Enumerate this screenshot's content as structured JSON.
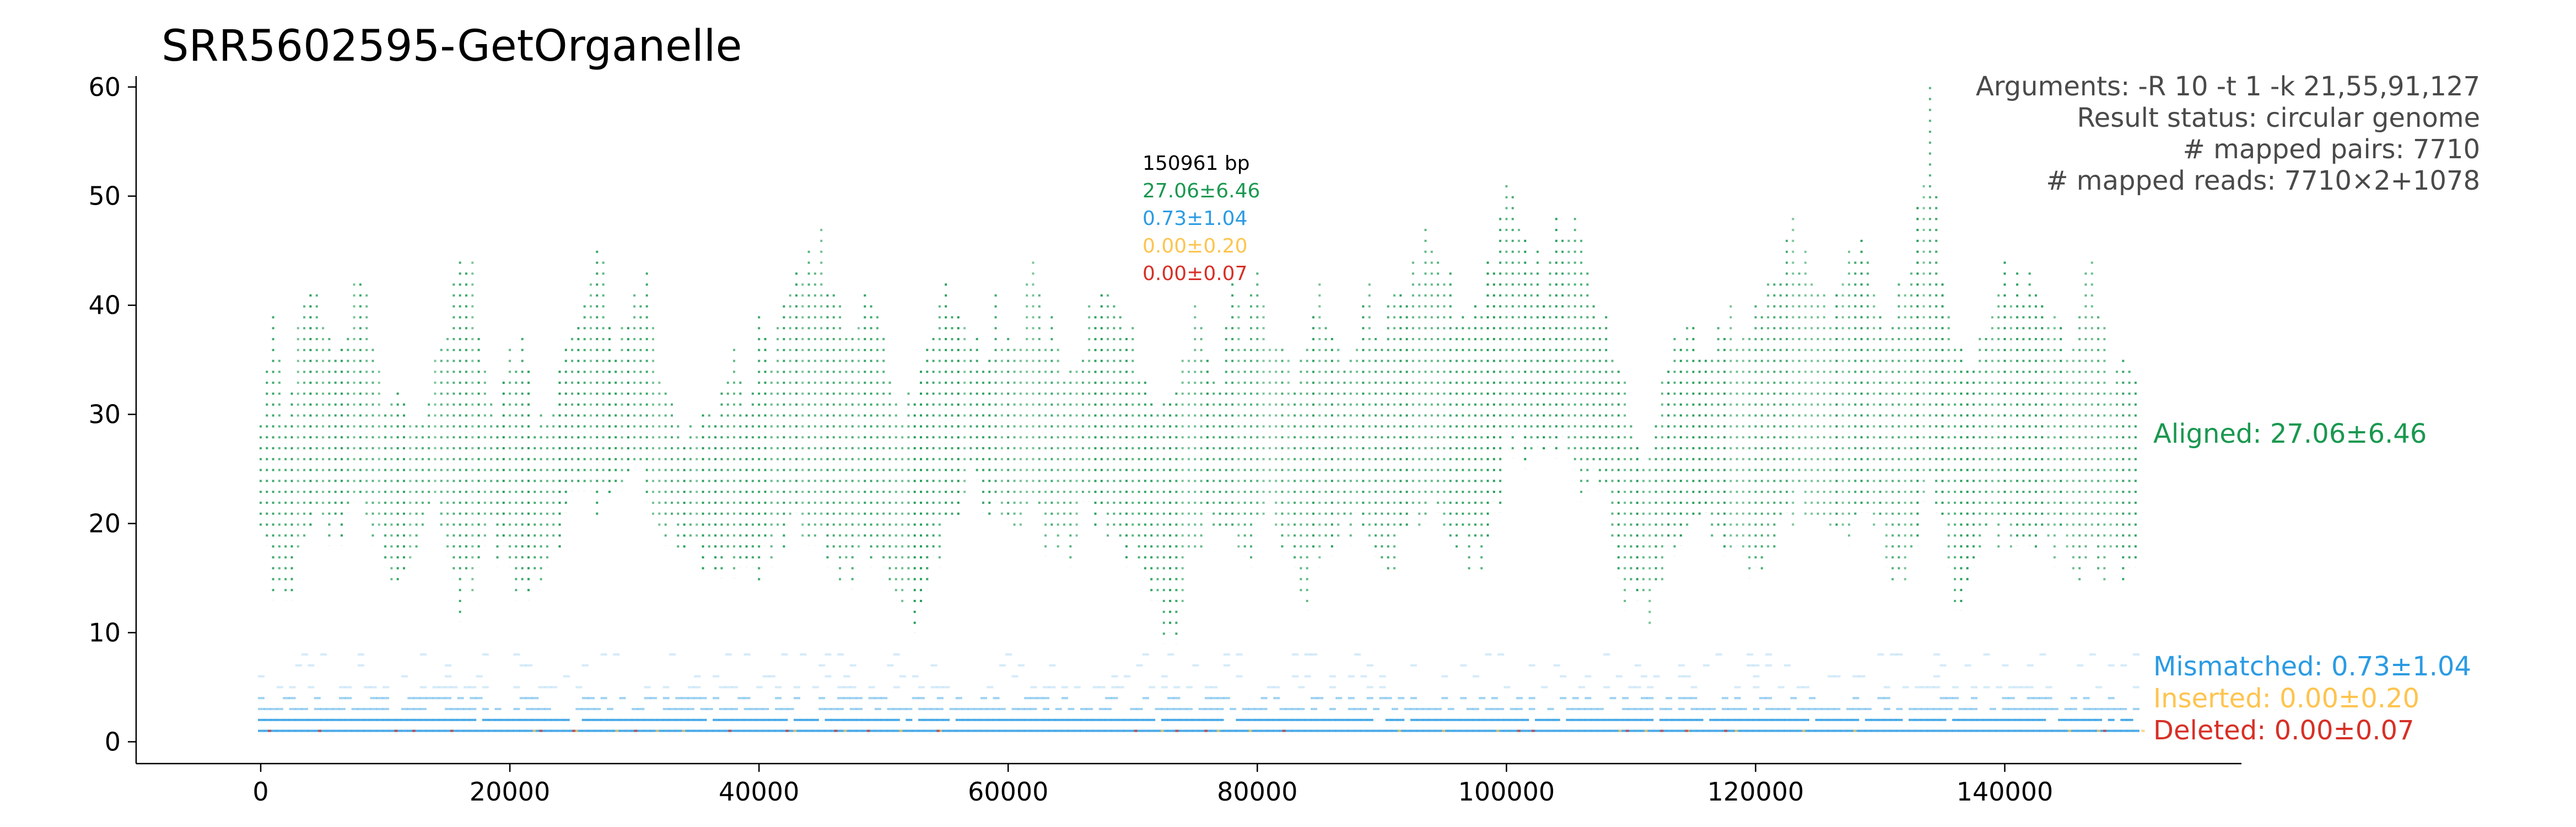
{
  "chart_data": {
    "type": "scatter",
    "title": "SRR5602595-GetOrganelle",
    "xlabel": "",
    "ylabel": "",
    "xlim": [
      -10000,
      159000
    ],
    "ylim": [
      -2,
      61
    ],
    "x_ticks": [
      0,
      20000,
      40000,
      60000,
      80000,
      100000,
      120000,
      140000
    ],
    "x_tick_labels": [
      "0",
      "20000",
      "40000",
      "60000",
      "80000",
      "100000",
      "120000",
      "140000"
    ],
    "y_ticks": [
      0,
      10,
      20,
      30,
      40,
      50,
      60
    ],
    "y_tick_labels": [
      "0",
      "10",
      "20",
      "30",
      "40",
      "50",
      "60"
    ],
    "grid": false,
    "genome_length_bp": 150961,
    "genome_length_label": "150961 bp",
    "info_lines": [
      "Arguments: -R 10 -t 1 -k 21,55,91,127",
      "Result status: circular genome",
      "# mapped pairs: 7710",
      "# mapped reads: 7710×2+1078"
    ],
    "series": [
      {
        "name": "Aligned",
        "label": "Aligned: 27.06±6.46",
        "stat": "27.06±6.46",
        "mean": 27.06,
        "sd": 6.46,
        "color": "#1a9850",
        "profile": {
          "x": [
            0,
            1000,
            2000,
            3000,
            4000,
            5000,
            6000,
            7000,
            8000,
            9000,
            10000,
            11000,
            12000,
            13000,
            14000,
            15000,
            16000,
            17000,
            18000,
            19000,
            20000,
            21000,
            22000,
            23000,
            24000,
            25000,
            26000,
            27000,
            28000,
            29000,
            30000,
            31000,
            32000,
            33000,
            34000,
            35000,
            36000,
            37000,
            38000,
            39000,
            40000,
            41000,
            42000,
            43000,
            44000,
            45000,
            46000,
            47000,
            48000,
            49000,
            50000,
            51000,
            52000,
            53000,
            54000,
            55000,
            56000,
            57000,
            58000,
            59000,
            60000,
            61000,
            62000,
            63000,
            64000,
            65000,
            66000,
            67000,
            68000,
            69000,
            70000,
            71000,
            72000,
            73000,
            74000,
            75000,
            76000,
            77000,
            78000,
            79000,
            80000,
            81000,
            82000,
            83000,
            84000,
            85000,
            86000,
            87000,
            88000,
            89000,
            90000,
            91000,
            92000,
            93000,
            94000,
            95000,
            96000,
            97000,
            98000,
            99000,
            100000,
            101000,
            102000,
            103000,
            104000,
            105000,
            106000,
            107000,
            108000,
            109000,
            110000,
            111000,
            112000,
            113000,
            114000,
            115000,
            116000,
            117000,
            118000,
            119000,
            120000,
            121000,
            122000,
            123000,
            124000,
            125000,
            126000,
            127000,
            128000,
            129000,
            130000,
            131000,
            132000,
            133000,
            134000,
            135000,
            136000,
            137000,
            138000,
            139000,
            140000,
            141000,
            142000,
            143000,
            144000,
            145000,
            146000,
            147000,
            148000,
            149000,
            150000
          ],
          "low": [
            18,
            14,
            12,
            16,
            20,
            19,
            18,
            20,
            22,
            18,
            17,
            14,
            16,
            18,
            20,
            16,
            12,
            15,
            19,
            18,
            16,
            13,
            14,
            17,
            19,
            22,
            24,
            22,
            23,
            24,
            26,
            21,
            18,
            19,
            17,
            16,
            15,
            16,
            14,
            16,
            15,
            17,
            18,
            20,
            19,
            18,
            17,
            15,
            16,
            17,
            14,
            12,
            13,
            11,
            15,
            19,
            22,
            23,
            21,
            22,
            20,
            21,
            22,
            19,
            18,
            17,
            20,
            21,
            19,
            18,
            17,
            16,
            11,
            8,
            13,
            18,
            19,
            20,
            18,
            17,
            19,
            20,
            18,
            15,
            14,
            16,
            18,
            19,
            20,
            17,
            15,
            16,
            18,
            20,
            21,
            19,
            18,
            17,
            16,
            20,
            26,
            27,
            25,
            26,
            27,
            25,
            24,
            23,
            21,
            16,
            12,
            11,
            13,
            17,
            19,
            18,
            20,
            19,
            18,
            17,
            16,
            17,
            18,
            21,
            22,
            20,
            19,
            18,
            20,
            21,
            20,
            16,
            13,
            20,
            25,
            19,
            13,
            15,
            18,
            19,
            18,
            17,
            18,
            19,
            18,
            17,
            16,
            17,
            16,
            15,
            14
          ],
          "high": [
            30,
            37,
            31,
            36,
            42,
            40,
            35,
            38,
            44,
            36,
            32,
            33,
            28,
            30,
            34,
            36,
            44,
            42,
            32,
            30,
            34,
            36,
            30,
            28,
            34,
            38,
            42,
            47,
            38,
            36,
            40,
            43,
            35,
            30,
            28,
            29,
            32,
            30,
            34,
            32,
            37,
            36,
            38,
            41,
            46,
            45,
            40,
            36,
            38,
            42,
            36,
            30,
            32,
            34,
            36,
            42,
            41,
            36,
            35,
            39,
            37,
            38,
            42,
            38,
            36,
            35,
            37,
            40,
            43,
            38,
            36,
            33,
            30,
            29,
            35,
            38,
            36,
            33,
            40,
            37,
            41,
            38,
            36,
            34,
            38,
            40,
            36,
            34,
            37,
            40,
            38,
            39,
            42,
            44,
            46,
            42,
            40,
            39,
            38,
            45,
            50,
            46,
            44,
            42,
            47,
            48,
            46,
            42,
            38,
            34,
            28,
            26,
            30,
            34,
            38,
            36,
            34,
            40,
            38,
            36,
            39,
            42,
            44,
            48,
            43,
            40,
            38,
            44,
            43,
            46,
            40,
            38,
            42,
            48,
            58,
            42,
            36,
            34,
            37,
            40,
            43,
            41,
            42,
            40,
            38,
            36,
            39,
            44,
            36,
            33,
            32
          ]
        }
      },
      {
        "name": "Mismatched",
        "label": "Mismatched: 0.73±1.04",
        "stat": "0.73±1.04",
        "mean": 0.73,
        "sd": 1.04,
        "color": "#2b9be3"
      },
      {
        "name": "Inserted",
        "label": "Inserted: 0.00±0.20",
        "stat": "0.00±0.20",
        "mean": 0.0,
        "sd": 0.2,
        "color": "#fec44f"
      },
      {
        "name": "Deleted",
        "label": "Deleted: 0.00±0.07",
        "stat": "0.00±0.07",
        "mean": 0.0,
        "sd": 0.07,
        "color": "#d73027"
      }
    ]
  }
}
